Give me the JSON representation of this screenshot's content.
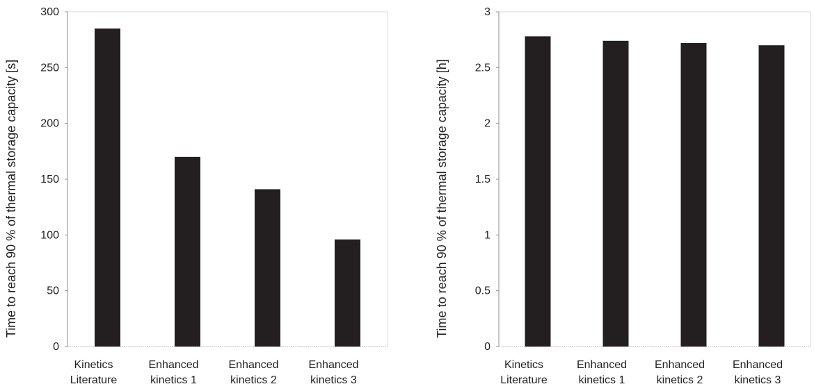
{
  "chart_data": [
    {
      "type": "bar",
      "categories": [
        [
          "Kinetics",
          "Literature"
        ],
        [
          "Enhanced",
          "kinetics 1"
        ],
        [
          "Enhanced",
          "kinetics 2"
        ],
        [
          "Enhanced",
          "kinetics 3"
        ]
      ],
      "values": [
        285,
        170,
        141,
        96
      ],
      "ylabel": "Time to reach 90 % of thermal storage capacity [s]",
      "xlabel": "",
      "ylim": [
        0,
        300
      ],
      "yticks": [
        "0",
        "50",
        "100",
        "150",
        "200",
        "250",
        "300"
      ],
      "grid": false,
      "bar_color": "#231f20"
    },
    {
      "type": "bar",
      "categories": [
        [
          "Kinetics",
          "Literature"
        ],
        [
          "Enhanced",
          "kinetics 1"
        ],
        [
          "Enhanced",
          "kinetics 2"
        ],
        [
          "Enhanced",
          "kinetics 3"
        ]
      ],
      "values": [
        2.78,
        2.74,
        2.72,
        2.7
      ],
      "ylabel": "Time to reach 90 % of thermal storage capacity [h]",
      "xlabel": "",
      "ylim": [
        0,
        3
      ],
      "yticks": [
        "0",
        "0.5",
        "1",
        "1.5",
        "2",
        "2.5",
        "3"
      ],
      "grid": false,
      "bar_color": "#231f20"
    }
  ]
}
